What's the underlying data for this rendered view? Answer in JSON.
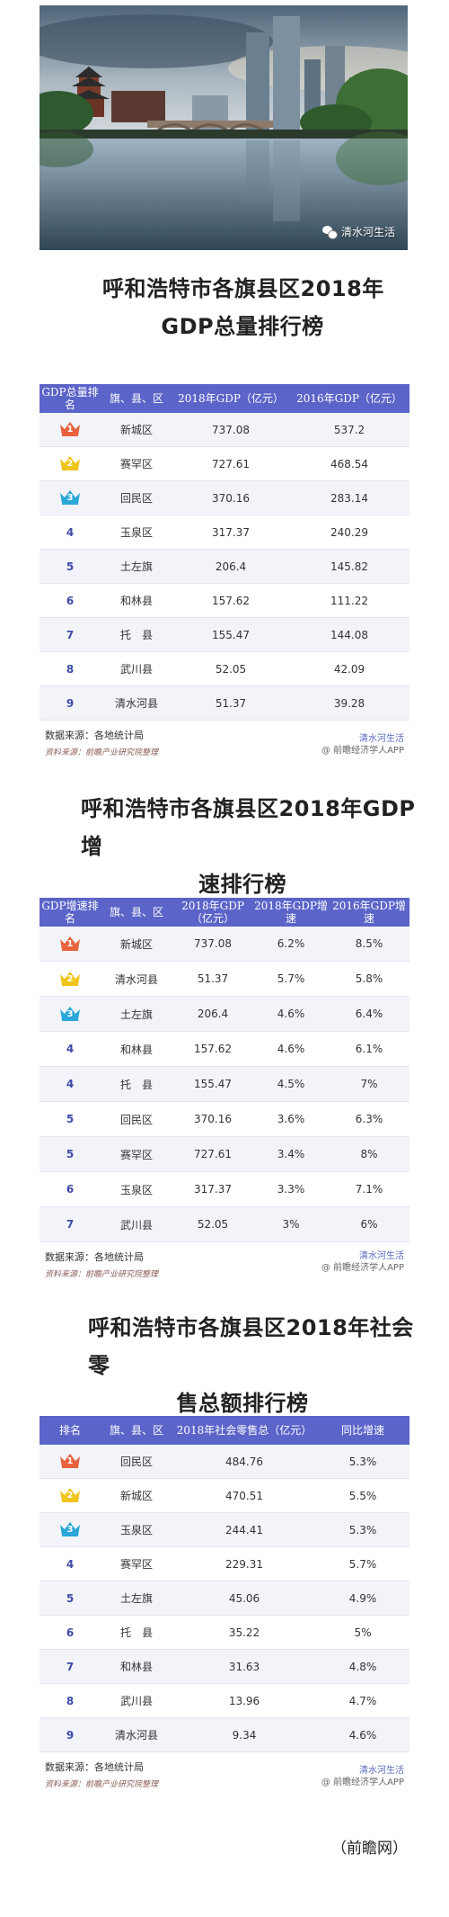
{
  "photo": {
    "watermark": "清水河生活",
    "icon": "wechat-icon"
  },
  "sections": [
    {
      "heading_l1": "呼和浩特市各旗县区2018年",
      "heading_l2": "GDP总量排行榜",
      "headers": [
        "GDP总量排名",
        "旗、县、区",
        "2018年GDP（亿元）",
        "2016年GDP（亿元）"
      ],
      "rows": [
        {
          "rank": "1",
          "name": "新城区",
          "v1": "737.08",
          "v2": "537.2"
        },
        {
          "rank": "2",
          "name": "赛罕区",
          "v1": "727.61",
          "v2": "468.54"
        },
        {
          "rank": "3",
          "name": "回民区",
          "v1": "370.16",
          "v2": "283.14"
        },
        {
          "rank": "4",
          "name": "玉泉区",
          "v1": "317.37",
          "v2": "240.29"
        },
        {
          "rank": "5",
          "name": "土左旗",
          "v1": "206.4",
          "v2": "145.82"
        },
        {
          "rank": "6",
          "name": "和林县",
          "v1": "157.62",
          "v2": "111.22"
        },
        {
          "rank": "7",
          "name": "托　县",
          "v1": "155.47",
          "v2": "144.08"
        },
        {
          "rank": "8",
          "name": "武川县",
          "v1": "52.05",
          "v2": "42.09"
        },
        {
          "rank": "9",
          "name": "清水河县",
          "v1": "51.37",
          "v2": "39.28"
        }
      ],
      "source": "数据来源：各地统计局",
      "source2": "资料来源：前瞻产业研究院整理",
      "wm1": "清水河生活",
      "wm2": "@ 前瞻经济学人APP"
    },
    {
      "heading_l1": "呼和浩特市各旗县区2018年GDP增",
      "heading_l2": "速排行榜",
      "headers": [
        "GDP增速排名",
        "旗、县、区",
        "2018年GDP（亿元）",
        "2018年GDP增速",
        "2016年GDP增速"
      ],
      "rows": [
        {
          "rank": "1",
          "name": "新城区",
          "v1": "737.08",
          "v2": "6.2%",
          "v3": "8.5%"
        },
        {
          "rank": "2",
          "name": "清水河县",
          "v1": "51.37",
          "v2": "5.7%",
          "v3": "5.8%"
        },
        {
          "rank": "3",
          "name": "土左旗",
          "v1": "206.4",
          "v2": "4.6%",
          "v3": "6.4%"
        },
        {
          "rank": "4",
          "name": "和林县",
          "v1": "157.62",
          "v2": "4.6%",
          "v3": "6.1%"
        },
        {
          "rank": "4",
          "name": "托　县",
          "v1": "155.47",
          "v2": "4.5%",
          "v3": "7%"
        },
        {
          "rank": "5",
          "name": "回民区",
          "v1": "370.16",
          "v2": "3.6%",
          "v3": "6.3%"
        },
        {
          "rank": "5",
          "name": "赛罕区",
          "v1": "727.61",
          "v2": "3.4%",
          "v3": "8%"
        },
        {
          "rank": "6",
          "name": "玉泉区",
          "v1": "317.37",
          "v2": "3.3%",
          "v3": "7.1%"
        },
        {
          "rank": "7",
          "name": "武川县",
          "v1": "52.05",
          "v2": "3%",
          "v3": "6%"
        }
      ],
      "source": "数据来源：各地统计局",
      "source2": "资料来源：前瞻产业研究院整理",
      "wm1": "清水河生活",
      "wm2": "@ 前瞻经济学人APP"
    },
    {
      "heading_l1": "呼和浩特市各旗县区2018年社会零",
      "heading_l2": "售总额排行榜",
      "headers": [
        "排名",
        "旗、县、区",
        "2018年社会零售总（亿元）",
        "同比增速"
      ],
      "rows": [
        {
          "rank": "1",
          "name": "回民区",
          "v1": "484.76",
          "v2": "5.3%"
        },
        {
          "rank": "2",
          "name": "新城区",
          "v1": "470.51",
          "v2": "5.5%"
        },
        {
          "rank": "3",
          "name": "玉泉区",
          "v1": "244.41",
          "v2": "5.3%"
        },
        {
          "rank": "4",
          "name": "赛罕区",
          "v1": "229.31",
          "v2": "5.7%"
        },
        {
          "rank": "5",
          "name": "土左旗",
          "v1": "45.06",
          "v2": "4.9%"
        },
        {
          "rank": "6",
          "name": "托　县",
          "v1": "35.22",
          "v2": "5%"
        },
        {
          "rank": "7",
          "name": "和林县",
          "v1": "31.63",
          "v2": "4.8%"
        },
        {
          "rank": "8",
          "name": "武川县",
          "v1": "13.96",
          "v2": "4.7%"
        },
        {
          "rank": "9",
          "name": "清水河县",
          "v1": "9.34",
          "v2": "4.6%"
        }
      ],
      "source": "数据来源：各地统计局",
      "source2": "资料来源：前瞻产业研究院整理",
      "wm1": "清水河生活",
      "wm2": "@ 前瞻经济学人APP"
    }
  ],
  "footer": "（前瞻网）",
  "colors": {
    "header": "#5b64c8",
    "crown1": "#e8623c",
    "crown2": "#f0c419",
    "crown3": "#29a7d8"
  }
}
